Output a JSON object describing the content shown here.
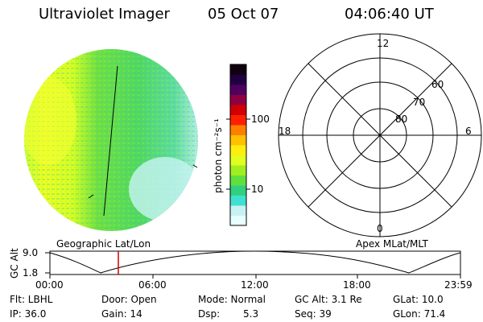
{
  "header": {
    "title": "Ultraviolet Imager",
    "date": "05 Oct 07",
    "time": "04:06:40 UT"
  },
  "colorbar": {
    "unit_label": "photon cm⁻²s⁻¹",
    "tick_100": "100",
    "tick_10": "10",
    "colors": [
      "#e8ffff",
      "#c8f2f2",
      "#40e0d0",
      "#30d080",
      "#60e040",
      "#a0ee20",
      "#e0ff20",
      "#ffee10",
      "#ffc000",
      "#ff7f00",
      "#ff2000",
      "#d00000",
      "#900040",
      "#500060",
      "#200040",
      "#100010"
    ]
  },
  "polar": {
    "mlt_12": "12",
    "mlt_18": "18",
    "mlt_6": "6",
    "mlt_0": "0",
    "lat_60": "60",
    "lat_70": "70",
    "lat_80": "80"
  },
  "orbit": {
    "left_title": "Geographic Lat/Lon",
    "right_title": "Apex MLat/MLT",
    "y_label": "GC Alt",
    "y_max": "9.0",
    "y_min": "1.8",
    "x_ticks": [
      "00:00",
      "06:00",
      "12:00",
      "18:00",
      "23:59"
    ]
  },
  "info": {
    "flt": "Flt: LBHL",
    "door": "Door: Open",
    "mode": "Mode: Normal",
    "gcalt": "GC Alt: 3.1 Re",
    "glat": "GLat: 10.0",
    "ip": "IP: 36.0",
    "gain": "Gain: 14",
    "dsp_label": "Dsp:",
    "dsp_value": "5.3",
    "seq": "Seq: 39",
    "glon": "GLon: 71.4"
  }
}
